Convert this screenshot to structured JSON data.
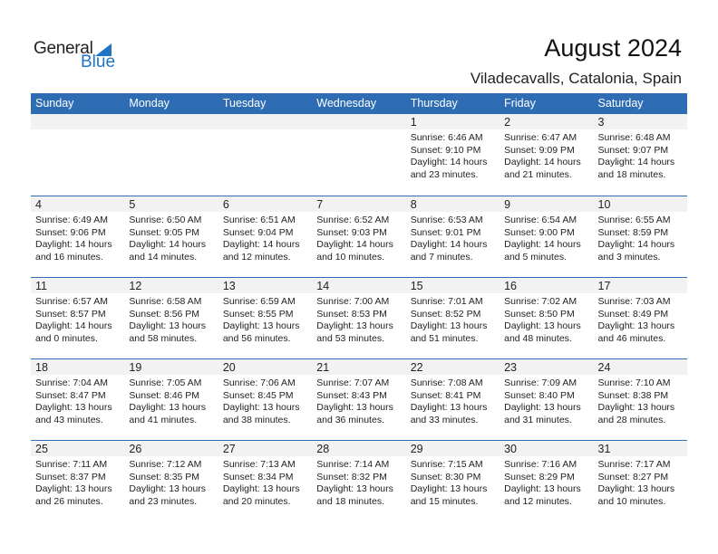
{
  "logo": {
    "text1": "General",
    "text2": "Blue"
  },
  "title": "August 2024",
  "subtitle": "Viladecavalls, Catalonia, Spain",
  "colors": {
    "header": "#2e6db4",
    "band": "#f2f2f2",
    "logo_blue": "#1f75c4"
  },
  "weekdays": [
    "Sunday",
    "Monday",
    "Tuesday",
    "Wednesday",
    "Thursday",
    "Friday",
    "Saturday"
  ],
  "first_weekday_index": 4,
  "days": [
    {
      "day": "1",
      "sunrise": "Sunrise: 6:46 AM",
      "sunset": "Sunset: 9:10 PM",
      "daylight1": "Daylight: 14 hours",
      "daylight2": "and 23 minutes."
    },
    {
      "day": "2",
      "sunrise": "Sunrise: 6:47 AM",
      "sunset": "Sunset: 9:09 PM",
      "daylight1": "Daylight: 14 hours",
      "daylight2": "and 21 minutes."
    },
    {
      "day": "3",
      "sunrise": "Sunrise: 6:48 AM",
      "sunset": "Sunset: 9:07 PM",
      "daylight1": "Daylight: 14 hours",
      "daylight2": "and 18 minutes."
    },
    {
      "day": "4",
      "sunrise": "Sunrise: 6:49 AM",
      "sunset": "Sunset: 9:06 PM",
      "daylight1": "Daylight: 14 hours",
      "daylight2": "and 16 minutes."
    },
    {
      "day": "5",
      "sunrise": "Sunrise: 6:50 AM",
      "sunset": "Sunset: 9:05 PM",
      "daylight1": "Daylight: 14 hours",
      "daylight2": "and 14 minutes."
    },
    {
      "day": "6",
      "sunrise": "Sunrise: 6:51 AM",
      "sunset": "Sunset: 9:04 PM",
      "daylight1": "Daylight: 14 hours",
      "daylight2": "and 12 minutes."
    },
    {
      "day": "7",
      "sunrise": "Sunrise: 6:52 AM",
      "sunset": "Sunset: 9:03 PM",
      "daylight1": "Daylight: 14 hours",
      "daylight2": "and 10 minutes."
    },
    {
      "day": "8",
      "sunrise": "Sunrise: 6:53 AM",
      "sunset": "Sunset: 9:01 PM",
      "daylight1": "Daylight: 14 hours",
      "daylight2": "and 7 minutes."
    },
    {
      "day": "9",
      "sunrise": "Sunrise: 6:54 AM",
      "sunset": "Sunset: 9:00 PM",
      "daylight1": "Daylight: 14 hours",
      "daylight2": "and 5 minutes."
    },
    {
      "day": "10",
      "sunrise": "Sunrise: 6:55 AM",
      "sunset": "Sunset: 8:59 PM",
      "daylight1": "Daylight: 14 hours",
      "daylight2": "and 3 minutes."
    },
    {
      "day": "11",
      "sunrise": "Sunrise: 6:57 AM",
      "sunset": "Sunset: 8:57 PM",
      "daylight1": "Daylight: 14 hours",
      "daylight2": "and 0 minutes."
    },
    {
      "day": "12",
      "sunrise": "Sunrise: 6:58 AM",
      "sunset": "Sunset: 8:56 PM",
      "daylight1": "Daylight: 13 hours",
      "daylight2": "and 58 minutes."
    },
    {
      "day": "13",
      "sunrise": "Sunrise: 6:59 AM",
      "sunset": "Sunset: 8:55 PM",
      "daylight1": "Daylight: 13 hours",
      "daylight2": "and 56 minutes."
    },
    {
      "day": "14",
      "sunrise": "Sunrise: 7:00 AM",
      "sunset": "Sunset: 8:53 PM",
      "daylight1": "Daylight: 13 hours",
      "daylight2": "and 53 minutes."
    },
    {
      "day": "15",
      "sunrise": "Sunrise: 7:01 AM",
      "sunset": "Sunset: 8:52 PM",
      "daylight1": "Daylight: 13 hours",
      "daylight2": "and 51 minutes."
    },
    {
      "day": "16",
      "sunrise": "Sunrise: 7:02 AM",
      "sunset": "Sunset: 8:50 PM",
      "daylight1": "Daylight: 13 hours",
      "daylight2": "and 48 minutes."
    },
    {
      "day": "17",
      "sunrise": "Sunrise: 7:03 AM",
      "sunset": "Sunset: 8:49 PM",
      "daylight1": "Daylight: 13 hours",
      "daylight2": "and 46 minutes."
    },
    {
      "day": "18",
      "sunrise": "Sunrise: 7:04 AM",
      "sunset": "Sunset: 8:47 PM",
      "daylight1": "Daylight: 13 hours",
      "daylight2": "and 43 minutes."
    },
    {
      "day": "19",
      "sunrise": "Sunrise: 7:05 AM",
      "sunset": "Sunset: 8:46 PM",
      "daylight1": "Daylight: 13 hours",
      "daylight2": "and 41 minutes."
    },
    {
      "day": "20",
      "sunrise": "Sunrise: 7:06 AM",
      "sunset": "Sunset: 8:45 PM",
      "daylight1": "Daylight: 13 hours",
      "daylight2": "and 38 minutes."
    },
    {
      "day": "21",
      "sunrise": "Sunrise: 7:07 AM",
      "sunset": "Sunset: 8:43 PM",
      "daylight1": "Daylight: 13 hours",
      "daylight2": "and 36 minutes."
    },
    {
      "day": "22",
      "sunrise": "Sunrise: 7:08 AM",
      "sunset": "Sunset: 8:41 PM",
      "daylight1": "Daylight: 13 hours",
      "daylight2": "and 33 minutes."
    },
    {
      "day": "23",
      "sunrise": "Sunrise: 7:09 AM",
      "sunset": "Sunset: 8:40 PM",
      "daylight1": "Daylight: 13 hours",
      "daylight2": "and 31 minutes."
    },
    {
      "day": "24",
      "sunrise": "Sunrise: 7:10 AM",
      "sunset": "Sunset: 8:38 PM",
      "daylight1": "Daylight: 13 hours",
      "daylight2": "and 28 minutes."
    },
    {
      "day": "25",
      "sunrise": "Sunrise: 7:11 AM",
      "sunset": "Sunset: 8:37 PM",
      "daylight1": "Daylight: 13 hours",
      "daylight2": "and 26 minutes."
    },
    {
      "day": "26",
      "sunrise": "Sunrise: 7:12 AM",
      "sunset": "Sunset: 8:35 PM",
      "daylight1": "Daylight: 13 hours",
      "daylight2": "and 23 minutes."
    },
    {
      "day": "27",
      "sunrise": "Sunrise: 7:13 AM",
      "sunset": "Sunset: 8:34 PM",
      "daylight1": "Daylight: 13 hours",
      "daylight2": "and 20 minutes."
    },
    {
      "day": "28",
      "sunrise": "Sunrise: 7:14 AM",
      "sunset": "Sunset: 8:32 PM",
      "daylight1": "Daylight: 13 hours",
      "daylight2": "and 18 minutes."
    },
    {
      "day": "29",
      "sunrise": "Sunrise: 7:15 AM",
      "sunset": "Sunset: 8:30 PM",
      "daylight1": "Daylight: 13 hours",
      "daylight2": "and 15 minutes."
    },
    {
      "day": "30",
      "sunrise": "Sunrise: 7:16 AM",
      "sunset": "Sunset: 8:29 PM",
      "daylight1": "Daylight: 13 hours",
      "daylight2": "and 12 minutes."
    },
    {
      "day": "31",
      "sunrise": "Sunrise: 7:17 AM",
      "sunset": "Sunset: 8:27 PM",
      "daylight1": "Daylight: 13 hours",
      "daylight2": "and 10 minutes."
    }
  ]
}
